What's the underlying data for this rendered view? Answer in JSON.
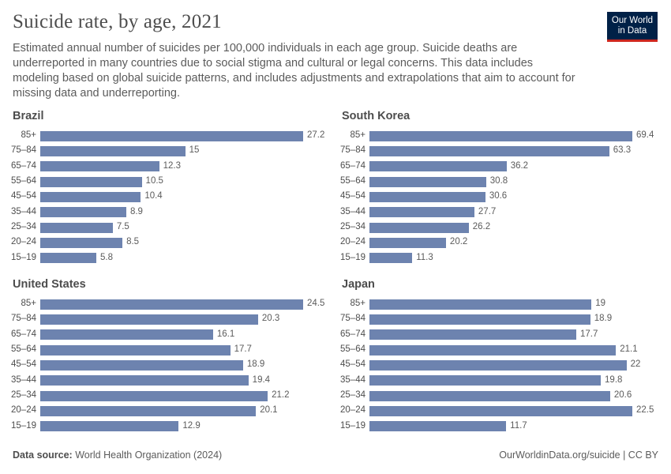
{
  "title": "Suicide rate, by age, 2021",
  "subtitle": "Estimated annual number of suicides per 100,000 individuals in each age group. Suicide deaths are underreported in many countries due to social stigma and cultural or legal concerns. This data includes modeling based on global suicide patterns, and includes adjustments and extrapolations that aim to account for missing data and underreporting.",
  "logo": {
    "line1": "Our World",
    "line2": "in Data",
    "bg": "#002147",
    "accent": "#ce261e"
  },
  "footer": {
    "source_label": "Data source:",
    "source": "World Health Organization (2024)",
    "url": "OurWorldinData.org/suicide | CC BY"
  },
  "bar_color": "#6d83af",
  "chart_data": [
    {
      "type": "bar",
      "orientation": "horizontal",
      "title": "Brazil",
      "categories": [
        "85+",
        "75–84",
        "65–74",
        "55–64",
        "45–54",
        "35–44",
        "25–34",
        "20–24",
        "15–19"
      ],
      "values": [
        27.2,
        15,
        12.3,
        10.5,
        10.4,
        8.9,
        7.5,
        8.5,
        5.8
      ]
    },
    {
      "type": "bar",
      "orientation": "horizontal",
      "title": "South Korea",
      "categories": [
        "85+",
        "75–84",
        "65–74",
        "55–64",
        "45–54",
        "35–44",
        "25–34",
        "20–24",
        "15–19"
      ],
      "values": [
        69.4,
        63.3,
        36.2,
        30.8,
        30.6,
        27.7,
        26.2,
        20.2,
        11.3
      ]
    },
    {
      "type": "bar",
      "orientation": "horizontal",
      "title": "United States",
      "categories": [
        "85+",
        "75–84",
        "65–74",
        "55–64",
        "45–54",
        "35–44",
        "25–34",
        "20–24",
        "15–19"
      ],
      "values": [
        24.5,
        20.3,
        16.1,
        17.7,
        18.9,
        19.4,
        21.2,
        20.1,
        12.9
      ]
    },
    {
      "type": "bar",
      "orientation": "horizontal",
      "title": "Japan",
      "categories": [
        "85+",
        "75–84",
        "65–74",
        "55–64",
        "45–54",
        "35–44",
        "25–34",
        "20–24",
        "15–19"
      ],
      "values": [
        19,
        18.9,
        17.7,
        21.1,
        22,
        19.8,
        20.6,
        22.5,
        11.7
      ]
    }
  ]
}
